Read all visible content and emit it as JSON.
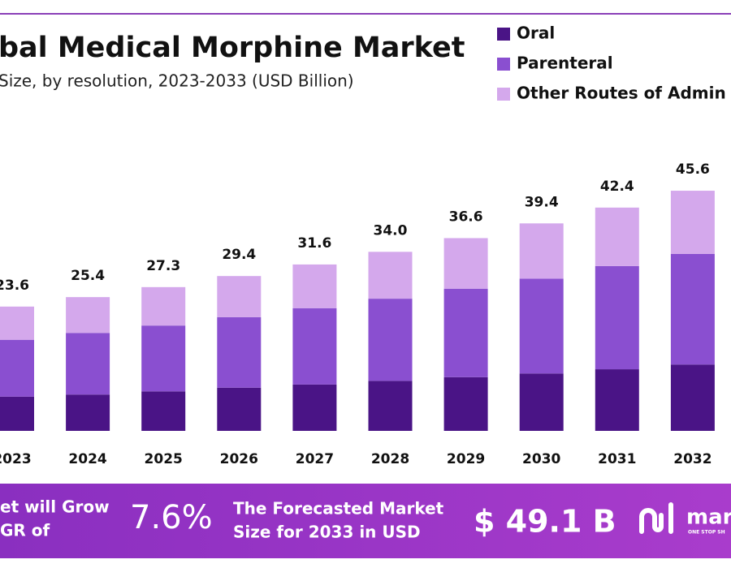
{
  "chart_data": {
    "type": "stacked-bar",
    "title": "bal Medical Morphine Market",
    "subtitle": "Size, by resolution, 2023-2033 (USD Billion)",
    "categories": [
      "2023",
      "2024",
      "2025",
      "2026",
      "2027",
      "2028",
      "2029",
      "2030",
      "2031",
      "2032"
    ],
    "series": [
      {
        "name": "Oral",
        "color": "#4a1486",
        "values": [
          6.5,
          6.9,
          7.5,
          8.2,
          8.8,
          9.5,
          10.2,
          10.9,
          11.7,
          12.6
        ]
      },
      {
        "name": "Parenteral",
        "color": "#8a4fd0",
        "values": [
          10.8,
          11.7,
          12.5,
          13.4,
          14.5,
          15.6,
          16.8,
          18.0,
          19.6,
          21.0
        ]
      },
      {
        "name": "Other Routes of Admin",
        "color": "#d4a8ec",
        "values": [
          6.3,
          6.8,
          7.3,
          7.8,
          8.3,
          8.9,
          9.6,
          10.5,
          11.1,
          12.0
        ]
      }
    ],
    "totals": [
      23.6,
      25.4,
      27.3,
      29.4,
      31.6,
      34.0,
      36.6,
      39.4,
      42.4,
      45.6
    ],
    "total_labels": [
      "23.6",
      "25.4",
      "27.3",
      "29.4",
      "31.6",
      "34.0",
      "36.6",
      "39.4",
      "42.4",
      "45.6"
    ]
  },
  "banner": {
    "growth_line1": "et will Grow",
    "growth_line2": "GR of",
    "cagr": "7.6%",
    "forecast_line1": "The Forecasted Market",
    "forecast_line2": "Size for 2033 in USD",
    "forecast_value": "$ 49.1 B",
    "logo": "mar",
    "logo_tagline": "ONE STOP SH"
  }
}
